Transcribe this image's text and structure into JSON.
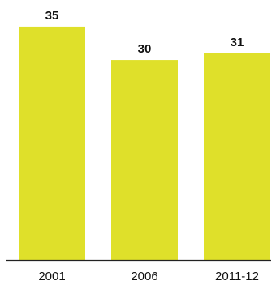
{
  "chart_data": {
    "type": "bar",
    "categories": [
      "2001",
      "2006",
      "2011-12"
    ],
    "values": [
      35,
      30,
      31
    ],
    "value_labels": [
      "35",
      "30",
      "31"
    ],
    "title": "",
    "xlabel": "",
    "ylabel": "",
    "ylim": [
      0,
      39
    ],
    "grid": false,
    "legend": "none",
    "bar_color": "#dfe02a",
    "axis_color": "#222222"
  }
}
